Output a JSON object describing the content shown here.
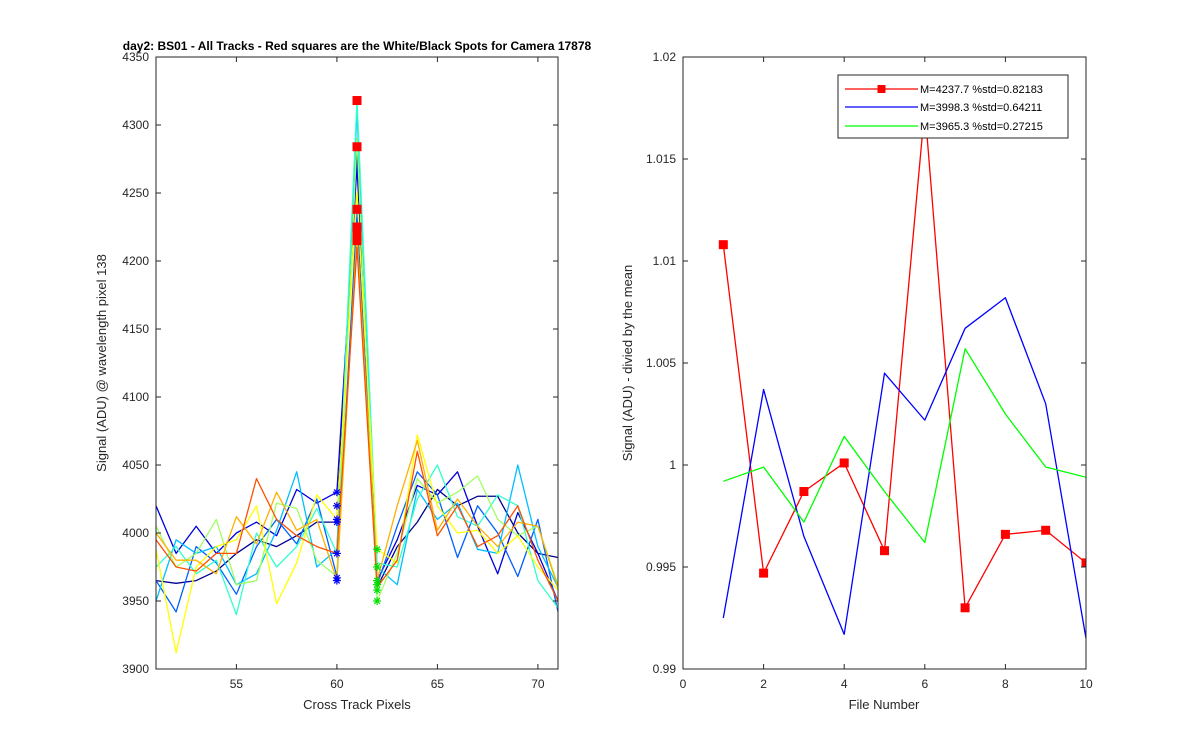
{
  "chart_data": [
    {
      "type": "line",
      "title": "day2: BS01 - All Tracks - Red squares are the  White/Black Spots for Camera 17878",
      "xlabel": "Cross Track Pixels",
      "ylabel": "Signal (ADU) @ wavelength pixel 138",
      "xlim": [
        51,
        71
      ],
      "ylim": [
        3900,
        4350
      ],
      "xticks": [
        55,
        60,
        65,
        70
      ],
      "yticks": [
        3900,
        3950,
        4000,
        4050,
        4100,
        4150,
        4200,
        4250,
        4300,
        4350
      ],
      "grid": false,
      "x": [
        51,
        52,
        53,
        54,
        55,
        56,
        57,
        58,
        59,
        60,
        61,
        62,
        63,
        64,
        65,
        66,
        67,
        68,
        69,
        70,
        71
      ],
      "series": [
        {
          "color": "#00008f",
          "values": [
            3965,
            3963,
            3965,
            3972,
            3985,
            3995,
            3990,
            3998,
            4008,
            4008,
            4280,
            3960,
            3990,
            4008,
            4032,
            4020,
            4027,
            4027,
            4000,
            3985,
            3982
          ]
        },
        {
          "color": "#0000e0",
          "values": [
            4020,
            3985,
            4005,
            3985,
            4000,
            4008,
            3998,
            4032,
            4022,
            4030,
            4270,
            3965,
            3995,
            4035,
            4028,
            4045,
            4005,
            3970,
            4015,
            3985,
            3950
          ]
        },
        {
          "color": "#0060ff",
          "values": [
            3965,
            3942,
            3990,
            3978,
            3955,
            3990,
            4010,
            3992,
            4025,
            3968,
            4235,
            3962,
            4005,
            4045,
            4028,
            3982,
            4020,
            4000,
            3968,
            4010,
            3942
          ]
        },
        {
          "color": "#00bfff",
          "values": [
            3950,
            3995,
            3985,
            3990,
            3962,
            3970,
            4002,
            4045,
            3975,
            3988,
            4310,
            3975,
            3962,
            4032,
            4010,
            4022,
            3988,
            3985,
            4050,
            3990,
            3960
          ]
        },
        {
          "color": "#30ffcf",
          "values": [
            3975,
            3990,
            3970,
            3980,
            3940,
            4000,
            3975,
            3990,
            4018,
            3985,
            4318,
            3978,
            3975,
            4025,
            4050,
            4012,
            4005,
            4028,
            4020,
            3965,
            3945
          ]
        },
        {
          "color": "#9fff60",
          "values": [
            4005,
            3975,
            3985,
            4010,
            3962,
            3965,
            4022,
            4018,
            3980,
            3968,
            4290,
            3950,
            3985,
            4040,
            4022,
            4030,
            4042,
            4010,
            3998,
            4005,
            3962
          ]
        },
        {
          "color": "#ffff00",
          "values": [
            3988,
            3912,
            3975,
            3990,
            3995,
            4020,
            3948,
            3978,
            4028,
            4010,
            4250,
            3988,
            3978,
            4072,
            4020,
            4000,
            4002,
            3985,
            3998,
            3975,
            3958
          ]
        },
        {
          "color": "#ffb000",
          "values": [
            4000,
            3980,
            3980,
            3970,
            4012,
            3992,
            4030,
            4002,
            4010,
            3965,
            4220,
            3965,
            4020,
            4068,
            4002,
            4025,
            4005,
            3990,
            4008,
            4005,
            3960
          ]
        },
        {
          "color": "#ff5000",
          "values": [
            3995,
            3975,
            3972,
            3985,
            3985,
            4040,
            4010,
            3998,
            3990,
            3985,
            4210,
            3960,
            3980,
            4060,
            3998,
            4020,
            3990,
            3998,
            4020,
            3980,
            3950
          ]
        }
      ],
      "markers": {
        "red_squares": {
          "color": "#ff0000",
          "x": [
            61,
            61,
            61,
            61,
            61,
            61
          ],
          "values": [
            4318,
            4284,
            4238,
            4225,
            4220,
            4215
          ]
        },
        "blue_stars": {
          "color": "#0000ff",
          "x": [
            60,
            60,
            60,
            60,
            60,
            60,
            60
          ],
          "values": [
            4030,
            4020,
            4010,
            4008,
            3985,
            3967,
            3965
          ]
        },
        "green_stars": {
          "color": "#00e000",
          "x": [
            62,
            62,
            62,
            62,
            62,
            62
          ],
          "values": [
            3988,
            3975,
            3965,
            3962,
            3958,
            3950
          ]
        }
      }
    },
    {
      "type": "line",
      "title": "",
      "xlabel": "File Number",
      "ylabel": "Signal (ADU) - divied by the mean",
      "xlim": [
        0,
        10
      ],
      "ylim": [
        0.99,
        1.02
      ],
      "xticks": [
        0,
        2,
        4,
        6,
        8,
        10
      ],
      "yticks": [
        0.99,
        0.995,
        1,
        1.005,
        1.01,
        1.015,
        1.02
      ],
      "ytick_labels": [
        "0.99",
        "0.995",
        "1",
        "1.005",
        "1.01",
        "1.015",
        "1.02"
      ],
      "grid": false,
      "legend_placement": "top-right",
      "x": [
        1,
        2,
        3,
        4,
        5,
        6,
        7,
        8,
        9,
        10
      ],
      "series": [
        {
          "name": "M=4237.7 %std=0.82183",
          "color": "#ff0000",
          "marker": "square",
          "values": [
            1.0108,
            0.9947,
            0.9987,
            1.0001,
            0.9958,
            1.0175,
            0.993,
            0.9966,
            0.9968,
            0.9952
          ]
        },
        {
          "name": "M=3998.3 %std=0.64211",
          "color": "#0000ff",
          "marker": "none",
          "values": [
            0.9925,
            1.0037,
            0.9965,
            0.9917,
            1.0045,
            1.0022,
            1.0067,
            1.0082,
            1.003,
            0.9915
          ]
        },
        {
          "name": "M=3965.3 %std=0.27215",
          "color": "#00ff00",
          "marker": "none",
          "values": [
            0.9992,
            0.9999,
            0.9972,
            1.0014,
            0.9987,
            0.9962,
            1.0057,
            1.0025,
            0.9999,
            0.9994
          ]
        }
      ]
    }
  ]
}
